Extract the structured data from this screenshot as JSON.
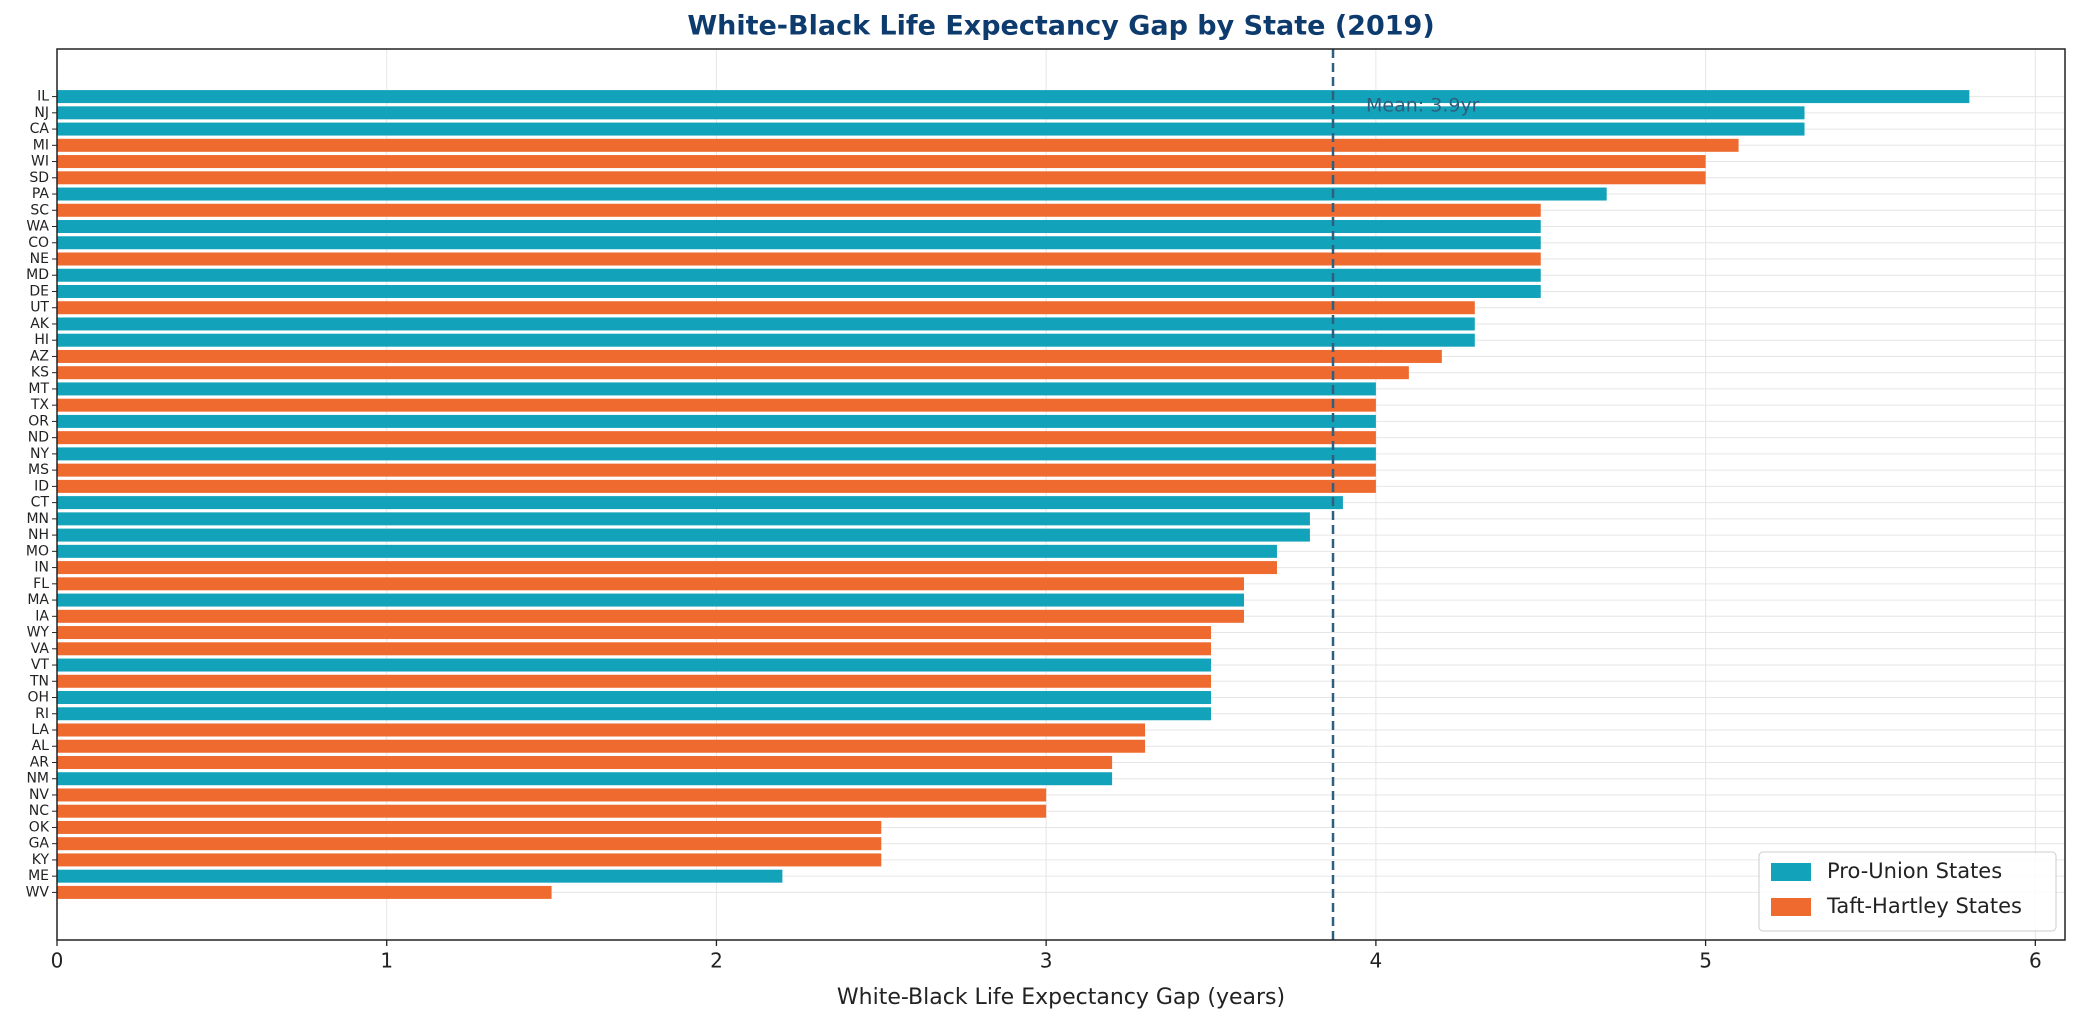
{
  "chart_data": {
    "type": "barh",
    "title": "White-Black Life Expectancy Gap by State (2019)",
    "x_label": "White-Black Life Expectancy Gap (years)",
    "categories": [
      "IL",
      "NJ",
      "CA",
      "MI",
      "WI",
      "SD",
      "PA",
      "SC",
      "WA",
      "CO",
      "NE",
      "MD",
      "DE",
      "UT",
      "AK",
      "HI",
      "AZ",
      "KS",
      "MT",
      "TX",
      "OR",
      "ND",
      "NY",
      "MS",
      "ID",
      "CT",
      "MN",
      "NH",
      "MO",
      "IN",
      "FL",
      "MA",
      "IA",
      "WY",
      "VA",
      "VT",
      "TN",
      "OH",
      "RI",
      "LA",
      "AL",
      "AR",
      "NM",
      "NV",
      "NC",
      "OK",
      "GA",
      "KY",
      "ME",
      "WV"
    ],
    "series": [
      {
        "name": "Pro-Union States",
        "color": "#12a3ba",
        "values": [
          5.8,
          5.3,
          5.3,
          null,
          null,
          null,
          4.7,
          null,
          4.5,
          4.5,
          null,
          4.5,
          4.5,
          null,
          4.3,
          4.3,
          null,
          null,
          4.0,
          null,
          4.0,
          null,
          4.0,
          null,
          null,
          3.9,
          3.8,
          3.8,
          3.7,
          null,
          null,
          3.6,
          null,
          null,
          null,
          3.5,
          null,
          3.5,
          3.5,
          null,
          null,
          null,
          3.2,
          null,
          null,
          null,
          null,
          null,
          2.2,
          null
        ]
      },
      {
        "name": "Taft-Hartley States",
        "color": "#ee6a2e",
        "values": [
          null,
          null,
          null,
          5.1,
          5.0,
          5.0,
          null,
          4.5,
          null,
          null,
          4.5,
          null,
          null,
          4.3,
          null,
          null,
          4.2,
          4.1,
          null,
          4.0,
          null,
          4.0,
          null,
          4.0,
          4.0,
          null,
          null,
          null,
          null,
          3.7,
          3.6,
          null,
          3.6,
          3.5,
          3.5,
          null,
          3.5,
          null,
          null,
          3.3,
          3.3,
          3.2,
          null,
          3.0,
          3.0,
          2.5,
          2.5,
          2.5,
          null,
          1.5
        ]
      }
    ],
    "mean_line": {
      "value": 3.87,
      "label": "Mean: 3.9yr",
      "color": "#2f5f7f"
    },
    "xlim": [
      0,
      6.09
    ],
    "xticks": [
      0,
      1,
      2,
      3,
      4,
      5,
      6
    ],
    "grid": true,
    "legend": "lower right"
  }
}
